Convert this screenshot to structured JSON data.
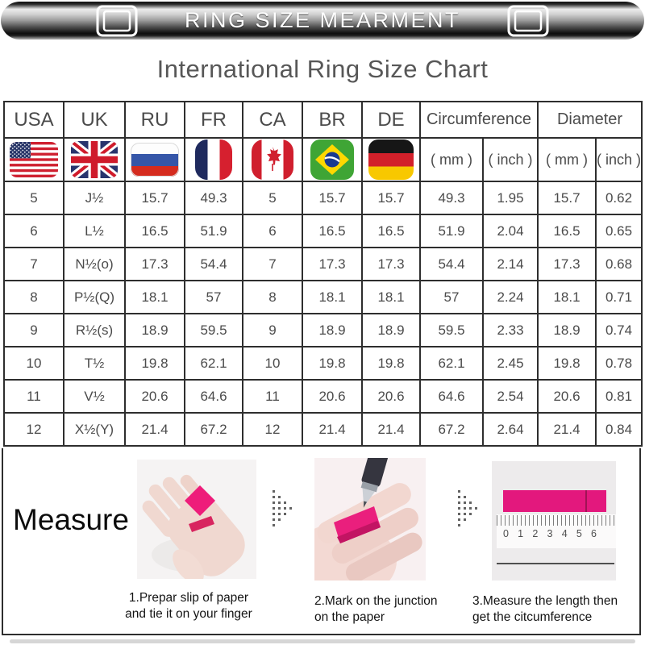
{
  "banner": {
    "title": "RING SIZE MEARMENT"
  },
  "page_title": "International Ring Size Chart",
  "table": {
    "country_headers": [
      "USA",
      "UK",
      "RU",
      "FR",
      "CA",
      "BR",
      "DE"
    ],
    "span_headers": [
      "Circumference",
      "Diameter"
    ],
    "unit_labels": [
      "( mm )",
      "( inch )",
      "( mm )",
      "( inch )"
    ],
    "flags": [
      "usa-flag",
      "uk-flag",
      "russia-flag",
      "france-flag",
      "canada-flag",
      "brazil-flag",
      "germany-flag"
    ]
  },
  "chart_data": {
    "type": "table",
    "title": "International Ring Size Chart",
    "columns": [
      "USA",
      "UK",
      "RU",
      "FR",
      "CA",
      "BR",
      "DE",
      "Circumference ( mm )",
      "Circumference ( inch )",
      "Diameter ( mm )",
      "Diameter ( inch )"
    ],
    "rows": [
      [
        "5",
        "J½",
        "15.7",
        "49.3",
        "5",
        "15.7",
        "15.7",
        "49.3",
        "1.95",
        "15.7",
        "0.62"
      ],
      [
        "6",
        "L½",
        "16.5",
        "51.9",
        "6",
        "16.5",
        "16.5",
        "51.9",
        "2.04",
        "16.5",
        "0.65"
      ],
      [
        "7",
        "N½(o)",
        "17.3",
        "54.4",
        "7",
        "17.3",
        "17.3",
        "54.4",
        "2.14",
        "17.3",
        "0.68"
      ],
      [
        "8",
        "P½(Q)",
        "18.1",
        "57",
        "8",
        "18.1",
        "18.1",
        "57",
        "2.24",
        "18.1",
        "0.71"
      ],
      [
        "9",
        "R½(s)",
        "18.9",
        "59.5",
        "9",
        "18.9",
        "18.9",
        "59.5",
        "2.33",
        "18.9",
        "0.74"
      ],
      [
        "10",
        "T½",
        "19.8",
        "62.1",
        "10",
        "19.8",
        "19.8",
        "62.1",
        "2.45",
        "19.8",
        "0.78"
      ],
      [
        "11",
        "V½",
        "20.6",
        "64.6",
        "11",
        "20.6",
        "20.6",
        "64.6",
        "2.54",
        "20.6",
        "0.81"
      ],
      [
        "12",
        "X½(Y)",
        "21.4",
        "67.2",
        "12",
        "21.4",
        "21.4",
        "67.2",
        "2.64",
        "21.4",
        "0.84"
      ]
    ]
  },
  "measure": {
    "label": "Measure",
    "steps": [
      {
        "caption_line1": "1.Prepar slip of paper",
        "caption_line2": "and tie it on your finger",
        "image": "hand-with-paper-strip"
      },
      {
        "caption_line1": "2.Mark on the junction",
        "caption_line2": "on the paper",
        "image": "mark-junction-with-pen"
      },
      {
        "caption_line1": "3.Measure the length then",
        "caption_line2": "get the citcumference",
        "image": "paper-strip-on-ruler"
      }
    ],
    "ruler_numbers": [
      "0",
      "1",
      "2",
      "3",
      "4",
      "5",
      "6"
    ]
  },
  "colors": {
    "accent_pink": "#e3187d",
    "table_border": "#2e2e2e",
    "banner_text": "#ffffff",
    "title_text": "#575757"
  }
}
